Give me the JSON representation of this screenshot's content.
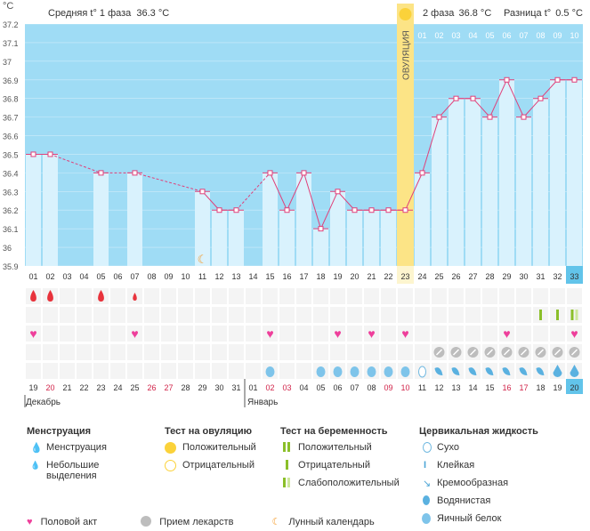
{
  "header": {
    "unit": "°C",
    "phase1": "Средняя t° 1 фаза",
    "phase1_value": "36.3 °C",
    "phase2": "2 фаза",
    "phase2_value": "36.8 °C",
    "diff": "Разница t°",
    "diff_value": "0.5 °C",
    "ovulation": "ОВУЛЯЦИЯ"
  },
  "colors": {
    "chart_bg": "#9fdcf5",
    "bar": "#d9f2fd",
    "line": "#e0407a",
    "ovulation": "#fce486",
    "header_bg": "#ffffff"
  },
  "chart_data": {
    "type": "line",
    "ylim": [
      35.9,
      37.2
    ],
    "y_ticks": [
      "35.9",
      "36",
      "36.1",
      "36.2",
      "36.3",
      "36.4",
      "36.5",
      "36.6",
      "36.7",
      "36.8",
      "36.9",
      "37",
      "37.1",
      "37.2"
    ],
    "cycle_days": [
      "01",
      "02",
      "03",
      "04",
      "05",
      "06",
      "07",
      "08",
      "09",
      "10",
      "11",
      "12",
      "13",
      "14",
      "15",
      "16",
      "17",
      "18",
      "19",
      "20",
      "21",
      "22",
      "23",
      "24",
      "25",
      "26",
      "27",
      "28",
      "29",
      "30",
      "31",
      "32",
      "33"
    ],
    "phase2_days": [
      "01",
      "02",
      "03",
      "04",
      "05",
      "06",
      "07",
      "08",
      "09",
      "10"
    ],
    "ovulation_day": 23,
    "temps": [
      36.5,
      36.5,
      null,
      null,
      36.4,
      null,
      36.4,
      null,
      null,
      null,
      36.3,
      36.2,
      36.2,
      null,
      36.4,
      36.2,
      36.4,
      36.1,
      36.3,
      36.2,
      36.2,
      36.2,
      36.2,
      36.4,
      36.7,
      36.8,
      36.8,
      36.7,
      36.9,
      36.7,
      36.8,
      36.9,
      36.9
    ],
    "dates": [
      "19",
      "20",
      "21",
      "22",
      "23",
      "24",
      "25",
      "26",
      "27",
      "28",
      "29",
      "30",
      "31",
      "01",
      "02",
      "03",
      "04",
      "05",
      "06",
      "07",
      "08",
      "09",
      "10",
      "11",
      "12",
      "13",
      "14",
      "15",
      "16",
      "17",
      "18",
      "19",
      "20"
    ],
    "red_dates": [
      1,
      7,
      8,
      14,
      15,
      21,
      22,
      28,
      29
    ],
    "months": [
      "Декабрь",
      "Январь"
    ]
  },
  "markers": {
    "menstruation": [
      1,
      2,
      5
    ],
    "spotting": [
      7
    ],
    "pregnancy_tests": [
      32,
      33,
      34
    ],
    "intercourse": [
      1,
      7,
      15,
      19,
      21,
      23,
      29,
      33
    ],
    "medication": [
      25,
      26,
      27,
      28,
      29,
      30,
      31,
      32,
      33
    ],
    "moon": [
      11
    ]
  },
  "legend": {
    "menstruation": {
      "title": "Менструация",
      "items": [
        "Менструация",
        "Небольшие выделения"
      ]
    },
    "ovulation_test": {
      "title": "Тест на овуляцию",
      "items": [
        "Положительный",
        "Отрицательный"
      ]
    },
    "pregnancy_test": {
      "title": "Тест на беременность",
      "items": [
        "Положительный",
        "Отрицательный",
        "Слабоположительный"
      ]
    },
    "cervical": {
      "title": "Цервикальная жидкость",
      "items": [
        "Сухо",
        "Клейкая",
        "Кремообразная",
        "Водянистая",
        "Яичный белок"
      ]
    },
    "bottom": [
      "Половой акт",
      "Прием лекарств",
      "Лунный календарь"
    ]
  }
}
